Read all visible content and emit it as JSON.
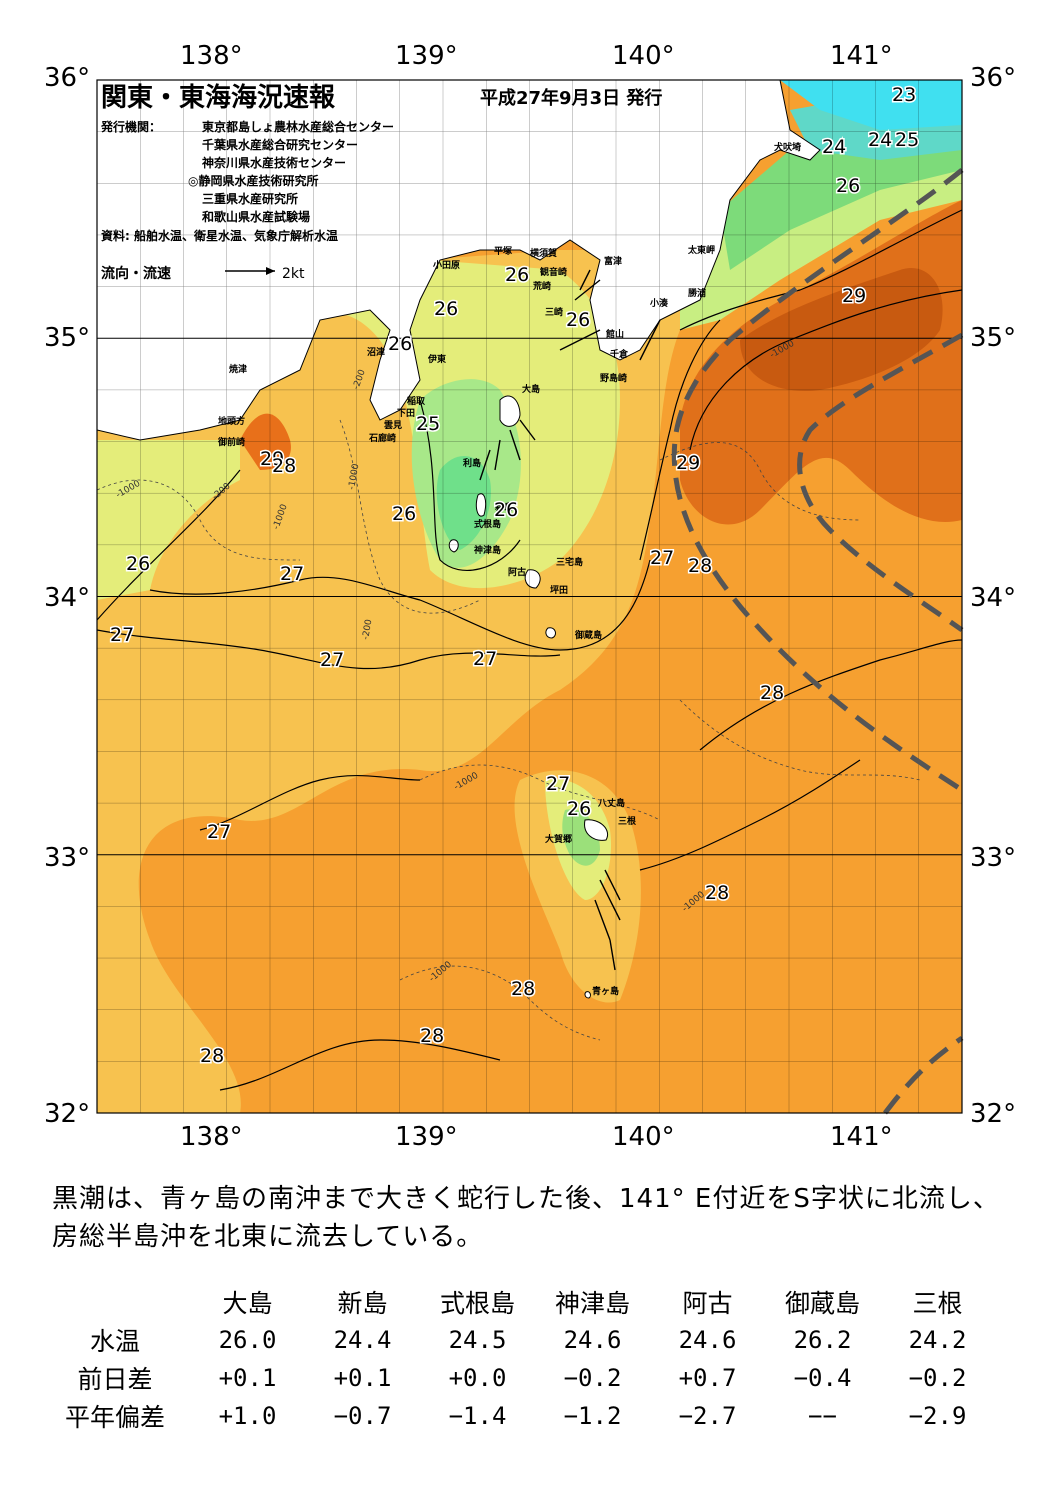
{
  "header": {
    "title": "関東・東海海況速報",
    "date": "平成27年9月3日 発行",
    "publisher_label": "発行機関：",
    "publishers": [
      "東京都島しょ農林水産総合センター",
      "千葉県水産総合研究センター",
      "神奈川県水産技術センター",
      "◎静岡県水産技術研究所",
      "三重県水産研究所",
      "和歌山県水産試験場"
    ],
    "source": "資料: 船舶水温、衛星水温、気象庁解析水温",
    "legend_label": "流向・流速",
    "legend_scale": "2kt"
  },
  "axes": {
    "lon_labels": [
      "138°",
      "139°",
      "140°",
      "141°"
    ],
    "lat_labels": [
      "36°",
      "35°",
      "34°",
      "33°",
      "32°"
    ]
  },
  "map_data": {
    "lon_range": [
      137.5,
      141.5
    ],
    "lat_range": [
      32,
      36
    ],
    "kuroshio_axis_color": "#555555",
    "places": [
      "犬吠埼",
      "太東岬",
      "勝浦",
      "小湊",
      "館山",
      "千倉",
      "野島崎",
      "富津",
      "観音崎",
      "横須賀",
      "平塚",
      "荒崎",
      "三崎",
      "小田原",
      "沼津",
      "伊東",
      "稲取",
      "下田",
      "雲見",
      "石廊崎",
      "焼津",
      "地頭方",
      "御前崎",
      "大島",
      "利島",
      "新島",
      "式根島",
      "神津島",
      "三宅島",
      "阿古",
      "坪田",
      "御蔵島",
      "八丈島",
      "三根",
      "大賀郷",
      "青ヶ島"
    ],
    "isotherm_labels": [
      "23",
      "24",
      "24",
      "25",
      "26",
      "26",
      "26",
      "26",
      "26",
      "26",
      "25",
      "29",
      "29",
      "28",
      "29",
      "26",
      "26",
      "27",
      "27",
      "27",
      "27",
      "28",
      "27",
      "26",
      "27",
      "27",
      "28",
      "28",
      "28",
      "28",
      "28"
    ],
    "depth_labels": [
      "-1000",
      "-200",
      "-1000",
      "-200",
      "-1000",
      "-200",
      "-1000",
      "-1000",
      "-1000",
      "-1000"
    ]
  },
  "comment": "黒潮は、青ヶ島の南沖まで大きく蛇行した後、141° E付近をS字状に北流し、房総半島沖を北東に流去している。",
  "table": {
    "headers": [
      "大島",
      "新島",
      "式根島",
      "神津島",
      "阿古",
      "御蔵島",
      "三根"
    ],
    "rows": [
      {
        "label": "水温",
        "values": [
          "26.0",
          "24.4",
          "24.5",
          "24.6",
          "24.6",
          "26.2",
          "24.2"
        ]
      },
      {
        "label": "前日差",
        "values": [
          "+0.1",
          "+0.1",
          "+0.0",
          "−0.2",
          "+0.7",
          "−0.4",
          "−0.2"
        ]
      },
      {
        "label": "平年偏差",
        "values": [
          "+1.0",
          "−0.7",
          "−1.4",
          "−1.2",
          "−2.7",
          "−−",
          "−2.9"
        ]
      }
    ]
  }
}
